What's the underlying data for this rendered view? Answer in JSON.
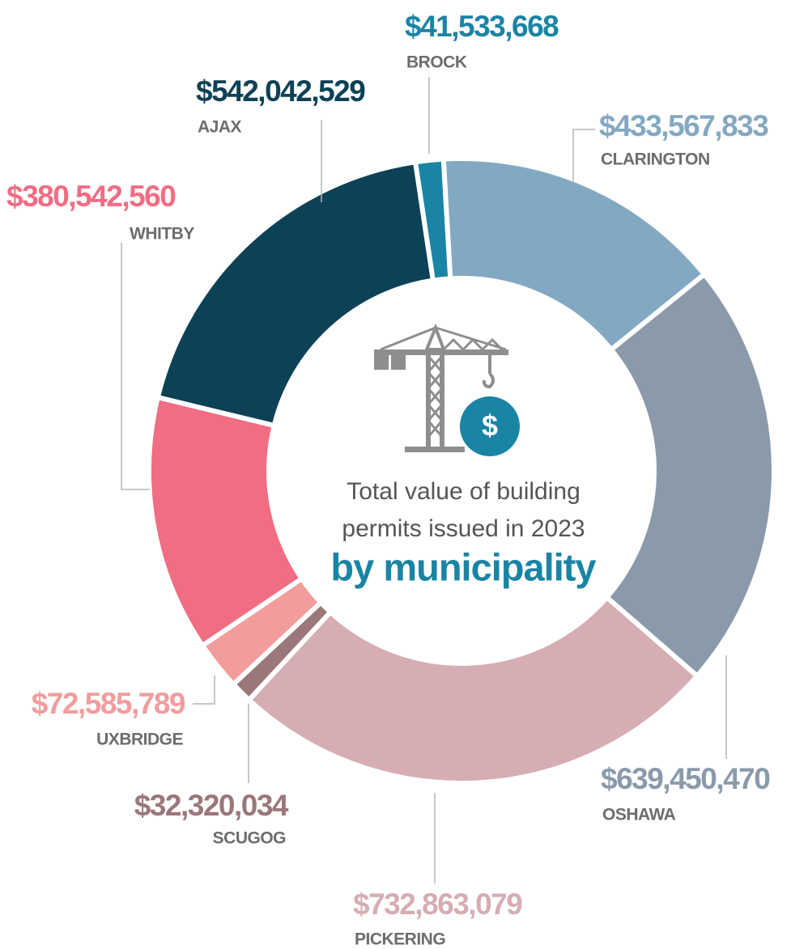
{
  "chart_data": {
    "type": "donut",
    "title": "Total value of building permits issued in 2023",
    "subtitle": "by municipality",
    "icon_text": "$",
    "categories": [
      "BROCK",
      "CLARINGTON",
      "OSHAWA",
      "PICKERING",
      "SCUGOG",
      "UXBRIDGE",
      "WHITBY",
      "AJAX"
    ],
    "values": [
      41533668,
      433567833,
      639450470,
      732863079,
      32320034,
      72585789,
      380542560,
      542042529
    ],
    "value_labels": [
      "$41,533,668",
      "$433,567,833",
      "$639,450,470",
      "$732,863,079",
      "$32,320,034",
      "$72,585,789",
      "$380,542,560",
      "$542,042,529"
    ],
    "colors": [
      "#1a84a5",
      "#83a9c2",
      "#8a9aab",
      "#d5adb2",
      "#9b7779",
      "#f29c9c",
      "#f06d84",
      "#0d4156"
    ]
  }
}
